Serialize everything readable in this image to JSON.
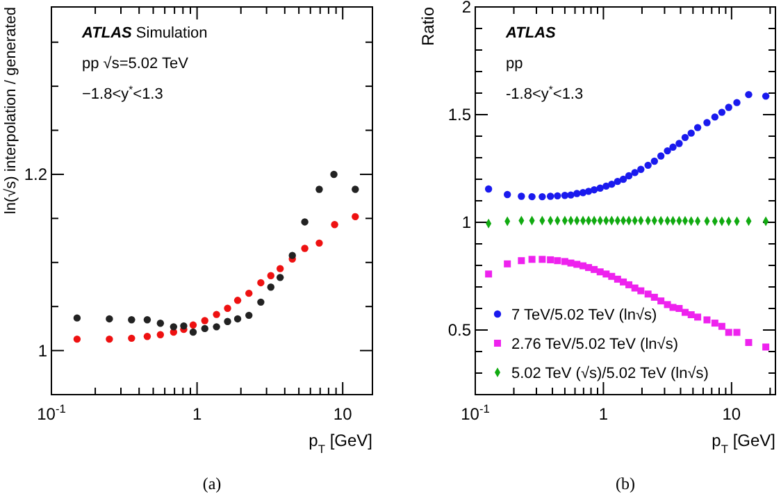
{
  "chart_data": [
    {
      "type": "scatter",
      "xlabel": "p$_{T}$ [GeV]",
      "ylabel": "ln(√s) interpolation / generated",
      "log": "x",
      "marker": "circle",
      "legend": false,
      "grid": false,
      "xlim": [
        0.1,
        16
      ],
      "ylim": [
        0.95,
        1.39
      ],
      "xticks": [
        {
          "value": 0.1,
          "label": "10$^{-1}$"
        },
        {
          "value": 0.2,
          "label": null
        },
        {
          "value": 0.3,
          "label": null
        },
        {
          "value": 0.4,
          "label": null
        },
        {
          "value": 0.5,
          "label": null
        },
        {
          "value": 0.6,
          "label": null
        },
        {
          "value": 0.7,
          "label": null
        },
        {
          "value": 0.8,
          "label": null
        },
        {
          "value": 0.9,
          "label": null
        },
        {
          "value": 1,
          "label": "1"
        },
        {
          "value": 2,
          "label": null
        },
        {
          "value": 3,
          "label": null
        },
        {
          "value": 4,
          "label": null
        },
        {
          "value": 5,
          "label": null
        },
        {
          "value": 6,
          "label": null
        },
        {
          "value": 7,
          "label": null
        },
        {
          "value": 8,
          "label": null
        },
        {
          "value": 9,
          "label": null
        },
        {
          "value": 10,
          "label": "10"
        }
      ],
      "yticks": [
        {
          "value": 0.95,
          "label": null
        },
        {
          "value": 1,
          "label": "1"
        },
        {
          "value": 1.05,
          "label": null
        },
        {
          "value": 1.1,
          "label": null
        },
        {
          "value": 1.15,
          "label": null
        },
        {
          "value": 1.2,
          "label": "1.2"
        },
        {
          "value": 1.25,
          "label": null
        },
        {
          "value": 1.3,
          "label": null
        },
        {
          "value": 1.35,
          "label": null
        }
      ],
      "annotations": [
        "ATLAS Simulation",
        "pp √s=5.02 TeV",
        "−1.8<y$^{*}$<1.3",
        "(a)"
      ],
      "series": [
        {
          "color": "#ee1111",
          "x": [
            0.15,
            0.25,
            0.355,
            0.455,
            0.56,
            0.69,
            0.81,
            0.94,
            1.13,
            1.36,
            1.62,
            1.9,
            2.27,
            2.74,
            3.21,
            3.72,
            4.51,
            5.49,
            6.9,
            8.8,
            12.2
          ],
          "values": [
            1.013,
            1.013,
            1.014,
            1.016,
            1.018,
            1.021,
            1.024,
            1.029,
            1.034,
            1.041,
            1.048,
            1.057,
            1.065,
            1.077,
            1.085,
            1.093,
            1.104,
            1.116,
            1.122,
            1.143,
            1.152
          ]
        },
        {
          "color": "#222222",
          "x": [
            0.15,
            0.25,
            0.355,
            0.455,
            0.56,
            0.69,
            0.81,
            0.94,
            1.13,
            1.36,
            1.62,
            1.9,
            2.27,
            2.74,
            3.21,
            3.72,
            4.51,
            5.49,
            6.9,
            8.7,
            12.2
          ],
          "values": [
            1.037,
            1.036,
            1.035,
            1.035,
            1.031,
            1.027,
            1.028,
            1.021,
            1.025,
            1.027,
            1.033,
            1.036,
            1.04,
            1.055,
            1.072,
            1.083,
            1.108,
            1.146,
            1.183,
            1.2,
            1.183
          ]
        }
      ]
    },
    {
      "type": "scatter",
      "xlabel": "p$_{T}$ [GeV]",
      "ylabel": "Ratio",
      "log": "x",
      "legend": "bottom left",
      "grid": false,
      "xlim": [
        0.1,
        22
      ],
      "ylim": [
        0.2,
        2
      ],
      "xticks": [
        {
          "value": 0.1,
          "label": "10$^{-1}$"
        },
        {
          "value": 0.2,
          "label": null
        },
        {
          "value": 0.3,
          "label": null
        },
        {
          "value": 0.4,
          "label": null
        },
        {
          "value": 0.5,
          "label": null
        },
        {
          "value": 0.6,
          "label": null
        },
        {
          "value": 0.7,
          "label": null
        },
        {
          "value": 0.8,
          "label": null
        },
        {
          "value": 0.9,
          "label": null
        },
        1,
        {
          "value": 2,
          "label": null
        },
        {
          "value": 3,
          "label": null
        },
        {
          "value": 4,
          "label": null
        },
        {
          "value": 5,
          "label": null
        },
        {
          "value": 6,
          "label": null
        },
        {
          "value": 7,
          "label": null
        },
        {
          "value": 8,
          "label": null
        },
        {
          "value": 9,
          "label": null
        },
        10,
        {
          "value": 20,
          "label": null
        }
      ],
      "yticks": [
        {
          "value": 0.3,
          "label": null
        },
        {
          "value": 0.4,
          "label": null
        },
        0.5,
        {
          "value": 0.6,
          "label": null
        },
        {
          "value": 0.7,
          "label": null
        },
        {
          "value": 0.8,
          "label": null
        },
        {
          "value": 0.9,
          "label": null
        },
        1,
        {
          "value": 1.1,
          "label": null
        },
        {
          "value": 1.2,
          "label": null
        },
        {
          "value": 1.3,
          "label": null
        },
        {
          "value": 1.4,
          "label": null
        },
        1.5,
        {
          "value": 1.6,
          "label": null
        },
        {
          "value": 1.7,
          "label": null
        },
        {
          "value": 1.8,
          "label": null
        },
        {
          "value": 1.9,
          "label": null
        },
        2
      ],
      "annotations": [
        "ATLAS",
        "pp",
        "-1.8<y$^{*}$<1.3",
        "(b)"
      ],
      "series": [
        {
          "name": "7 TeV/5.02 TeV (ln√s)",
          "color": "#1a1aee",
          "marker": "circle",
          "x": [
            0.127,
            0.178,
            0.229,
            0.277,
            0.333,
            0.386,
            0.438,
            0.5,
            0.557,
            0.621,
            0.693,
            0.766,
            0.847,
            0.943,
            1.05,
            1.16,
            1.29,
            1.43,
            1.58,
            1.76,
            1.96,
            2.23,
            2.5,
            2.81,
            3.16,
            3.49,
            3.9,
            4.34,
            4.84,
            5.44,
            6.43,
            7.41,
            8.4,
            9.5,
            11.0,
            13.6,
            18.5
          ],
          "values": [
            1.155,
            1.129,
            1.121,
            1.119,
            1.119,
            1.121,
            1.123,
            1.125,
            1.127,
            1.134,
            1.138,
            1.144,
            1.151,
            1.159,
            1.168,
            1.177,
            1.19,
            1.2,
            1.216,
            1.231,
            1.246,
            1.265,
            1.284,
            1.308,
            1.332,
            1.349,
            1.366,
            1.394,
            1.414,
            1.44,
            1.463,
            1.489,
            1.511,
            1.534,
            1.556,
            1.593,
            1.586
          ]
        },
        {
          "name": "2.76 TeV/5.02 TeV (ln√s)",
          "color": "#ee22ee",
          "marker": "square",
          "x": [
            0.127,
            0.178,
            0.229,
            0.277,
            0.333,
            0.386,
            0.438,
            0.5,
            0.557,
            0.621,
            0.693,
            0.766,
            0.847,
            0.943,
            1.05,
            1.16,
            1.29,
            1.43,
            1.58,
            1.76,
            1.96,
            2.23,
            2.5,
            2.81,
            3.16,
            3.49,
            3.9,
            4.34,
            4.84,
            5.44,
            6.43,
            7.41,
            8.4,
            9.5,
            11.0,
            13.6,
            18.5
          ],
          "values": [
            0.76,
            0.807,
            0.822,
            0.828,
            0.828,
            0.826,
            0.822,
            0.818,
            0.811,
            0.805,
            0.798,
            0.79,
            0.781,
            0.77,
            0.76,
            0.749,
            0.736,
            0.723,
            0.71,
            0.695,
            0.682,
            0.667,
            0.652,
            0.635,
            0.618,
            0.605,
            0.6,
            0.582,
            0.571,
            0.56,
            0.547,
            0.532,
            0.517,
            0.489,
            0.489,
            0.442,
            0.421
          ]
        },
        {
          "name": "5.02 TeV (√s)/5.02 TeV (ln√s)",
          "color": "#11aa11",
          "marker": "diamond",
          "x": [
            0.127,
            0.178,
            0.229,
            0.277,
            0.333,
            0.386,
            0.438,
            0.5,
            0.557,
            0.621,
            0.693,
            0.766,
            0.847,
            0.943,
            1.05,
            1.16,
            1.29,
            1.43,
            1.58,
            1.76,
            1.96,
            2.23,
            2.5,
            2.81,
            3.16,
            3.49,
            3.9,
            4.34,
            4.84,
            5.44,
            6.43,
            7.41,
            8.4,
            9.5,
            11.0,
            13.6,
            18.5
          ],
          "values": [
            0.994,
            1.005,
            1.008,
            1.008,
            1.008,
            1.008,
            1.008,
            1.008,
            1.008,
            1.008,
            1.008,
            1.008,
            1.008,
            1.008,
            1.008,
            1.008,
            1.008,
            1.008,
            1.008,
            1.008,
            1.008,
            1.008,
            1.008,
            1.007,
            1.007,
            1.007,
            1.007,
            1.007,
            1.006,
            1.006,
            1.006,
            1.005,
            1.005,
            1.005,
            1.005,
            1.006,
            1.005
          ]
        }
      ]
    }
  ]
}
